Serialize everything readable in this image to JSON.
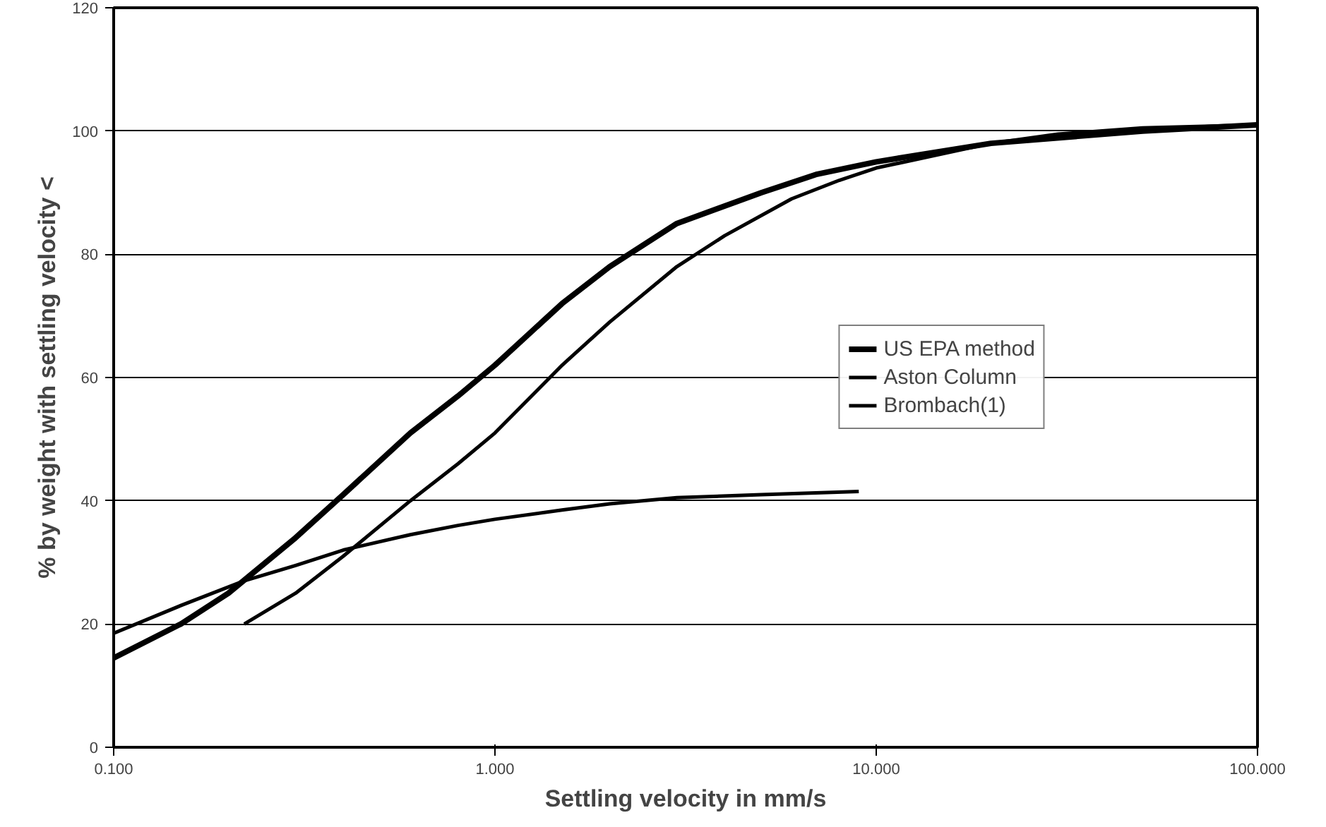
{
  "chart_data": {
    "type": "line",
    "xlabel": "Settling velocity in mm/s",
    "ylabel": "% by weight with settling velocity <",
    "log": "x",
    "grid": "y",
    "legend": "right",
    "marker": "none",
    "line_style": "solid",
    "xlim": [
      0.1,
      100
    ],
    "xticks": [
      {
        "value": 0.1,
        "label": "0.100"
      },
      {
        "value": 1,
        "label": "1.000"
      },
      {
        "value": 10,
        "label": "10.000"
      },
      {
        "value": 100,
        "label": "100.000"
      }
    ],
    "ylim": [
      0,
      120
    ],
    "yticks": [
      0,
      20,
      40,
      60,
      80,
      100,
      120
    ],
    "series": [
      {
        "name": "US EPA method",
        "color": "#000000",
        "x": [
          0.1,
          0.15,
          0.2,
          0.3,
          0.4,
          0.6,
          0.8,
          1,
          1.5,
          2,
          3,
          5,
          7,
          10,
          20,
          50,
          100
        ],
        "values": [
          14.5,
          20,
          25,
          34,
          41,
          51,
          57,
          62,
          72,
          78,
          85,
          90,
          93,
          95,
          98,
          100,
          101
        ]
      },
      {
        "name": "Aston Column",
        "color": "#000000",
        "x": [
          0.1,
          0.15,
          0.22,
          0.3,
          0.4,
          0.6,
          0.8,
          1,
          1.5,
          2,
          3,
          5,
          9
        ],
        "values": [
          18.5,
          23,
          27,
          29.5,
          32,
          34.5,
          36,
          37,
          38.5,
          39.5,
          40.5,
          41,
          41.5
        ]
      },
      {
        "name": "Brombach(1)",
        "color": "#000000",
        "x": [
          0.22,
          0.3,
          0.4,
          0.6,
          0.8,
          1,
          1.5,
          2,
          3,
          4,
          6,
          8,
          10,
          20,
          30,
          50,
          100
        ],
        "values": [
          20,
          25,
          31,
          40,
          46,
          51,
          62,
          69,
          78,
          83,
          89,
          92,
          94,
          98,
          99.5,
          100.5,
          101
        ]
      }
    ]
  }
}
